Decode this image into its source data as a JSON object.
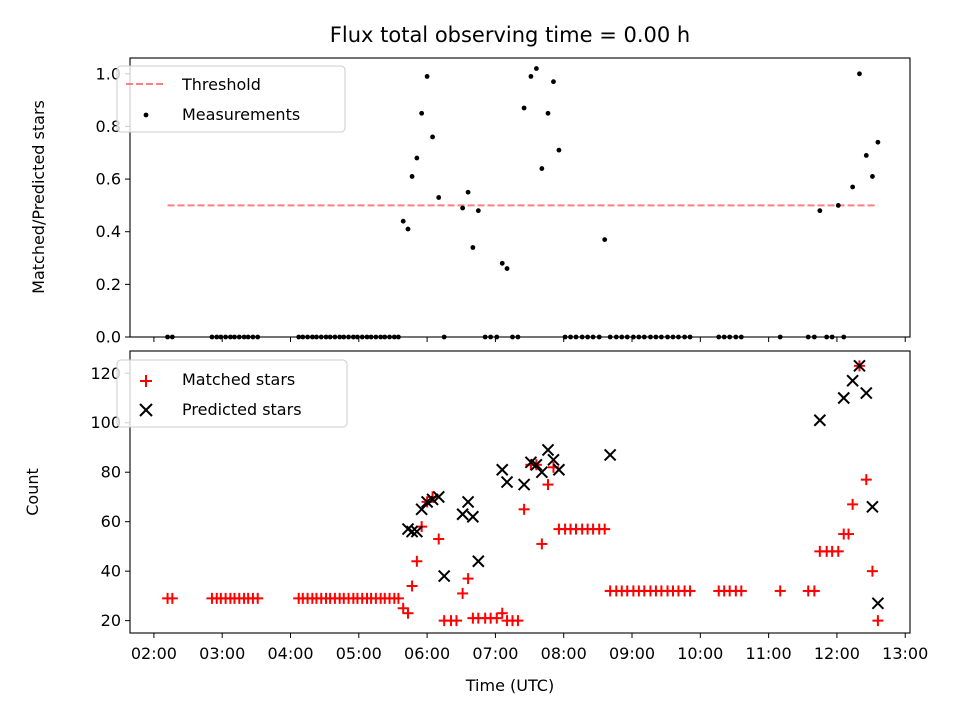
{
  "chart_data": [
    {
      "type": "scatter",
      "title": "Flux total observing time = 0.00 h",
      "xlabel": "",
      "ylabel": "Matched/Predicted stars",
      "xlim": [
        1.65,
        13.07
      ],
      "ylim": [
        0.0,
        1.06
      ],
      "yticks": [
        0.0,
        0.2,
        0.4,
        0.6,
        0.8,
        1.0
      ],
      "ytick_labels": [
        "0.0",
        "0.2",
        "0.4",
        "0.6",
        "0.8",
        "1.0"
      ],
      "legend_position": "upper-left",
      "series": [
        {
          "name": "Threshold",
          "kind": "dashed-line",
          "color": "#ff7f7f",
          "x": [
            2.2,
            12.6
          ],
          "y": [
            0.5,
            0.5
          ]
        },
        {
          "name": "Measurements",
          "kind": "dots",
          "color": "#000000",
          "x": [
            2.2,
            2.27,
            2.85,
            2.92,
            2.98,
            3.05,
            3.12,
            3.18,
            3.25,
            3.32,
            3.38,
            3.45,
            3.52,
            4.12,
            4.18,
            4.25,
            4.32,
            4.38,
            4.45,
            4.52,
            4.58,
            4.65,
            4.72,
            4.78,
            4.85,
            4.92,
            4.98,
            5.05,
            5.12,
            5.18,
            5.25,
            5.32,
            5.38,
            5.45,
            5.52,
            5.58,
            5.65,
            5.72,
            5.78,
            5.85,
            5.92,
            6.0,
            6.08,
            6.17,
            6.25,
            6.52,
            6.6,
            6.67,
            6.75,
            6.85,
            6.93,
            7.02,
            7.1,
            7.17,
            7.25,
            7.33,
            7.42,
            7.52,
            7.6,
            7.68,
            7.77,
            7.85,
            7.93,
            8.02,
            8.1,
            8.18,
            8.27,
            8.35,
            8.43,
            8.52,
            8.6,
            8.68,
            8.77,
            8.85,
            8.93,
            9.02,
            9.1,
            9.18,
            9.27,
            9.35,
            9.43,
            9.52,
            9.6,
            9.68,
            9.77,
            9.85,
            10.27,
            10.35,
            10.43,
            10.52,
            10.6,
            11.17,
            11.58,
            11.67,
            11.75,
            11.85,
            11.93,
            12.02,
            12.1,
            12.23,
            12.33,
            12.43,
            12.52,
            12.6
          ],
          "y": [
            0,
            0,
            0,
            0,
            0,
            0,
            0,
            0,
            0,
            0,
            0,
            0,
            0,
            0,
            0,
            0,
            0,
            0,
            0,
            0,
            0,
            0,
            0,
            0,
            0,
            0,
            0,
            0,
            0,
            0,
            0,
            0,
            0,
            0,
            0,
            0,
            0.44,
            0.41,
            0.61,
            0.68,
            0.85,
            0.99,
            0.76,
            0.53,
            0,
            0.49,
            0.55,
            0.34,
            0.48,
            0,
            0,
            0,
            0.28,
            0.26,
            0,
            0,
            0.87,
            0.99,
            1.02,
            0.64,
            0.85,
            0.97,
            0.71,
            0,
            0,
            0,
            0,
            0,
            0,
            0,
            0.37,
            0,
            0,
            0,
            0,
            0,
            0,
            0,
            0,
            0,
            0,
            0,
            0,
            0,
            0,
            0,
            0,
            0,
            0,
            0,
            0,
            0,
            0,
            0,
            0.48,
            0,
            0,
            0.5,
            0,
            0.57,
            1.0,
            0.69,
            0.61,
            0.74
          ]
        }
      ]
    },
    {
      "type": "scatter",
      "title": "",
      "xlabel": "Time (UTC)",
      "ylabel": "Count",
      "xlim": [
        1.65,
        13.07
      ],
      "ylim": [
        15,
        129
      ],
      "yticks": [
        20,
        40,
        60,
        80,
        100,
        120
      ],
      "ytick_labels": [
        "20",
        "40",
        "60",
        "80",
        "100",
        "120"
      ],
      "xticks": [
        2,
        3,
        4,
        5,
        6,
        7,
        8,
        9,
        10,
        11,
        12,
        13
      ],
      "xtick_labels": [
        "02:00",
        "03:00",
        "04:00",
        "05:00",
        "06:00",
        "07:00",
        "08:00",
        "09:00",
        "10:00",
        "11:00",
        "12:00",
        "13:00"
      ],
      "legend_position": "upper-left",
      "series": [
        {
          "name": "Matched stars",
          "kind": "plus",
          "color": "#ff0000",
          "x": [
            2.2,
            2.27,
            2.85,
            2.92,
            2.98,
            3.05,
            3.12,
            3.18,
            3.25,
            3.32,
            3.38,
            3.45,
            3.52,
            4.12,
            4.18,
            4.25,
            4.32,
            4.38,
            4.45,
            4.52,
            4.58,
            4.65,
            4.72,
            4.78,
            4.85,
            4.92,
            4.98,
            5.05,
            5.12,
            5.18,
            5.25,
            5.32,
            5.38,
            5.45,
            5.52,
            5.58,
            5.65,
            5.72,
            5.78,
            5.85,
            5.92,
            6.0,
            6.08,
            6.17,
            6.25,
            6.35,
            6.43,
            6.52,
            6.6,
            6.67,
            6.75,
            6.85,
            6.93,
            7.02,
            7.1,
            7.17,
            7.25,
            7.33,
            7.42,
            7.52,
            7.6,
            7.68,
            7.77,
            7.85,
            7.93,
            8.02,
            8.1,
            8.18,
            8.27,
            8.35,
            8.43,
            8.52,
            8.6,
            8.68,
            8.77,
            8.85,
            8.93,
            9.02,
            9.1,
            9.18,
            9.27,
            9.35,
            9.43,
            9.52,
            9.6,
            9.68,
            9.77,
            9.85,
            10.27,
            10.35,
            10.43,
            10.52,
            10.6,
            11.17,
            11.58,
            11.67,
            11.75,
            11.85,
            11.93,
            12.02,
            12.1,
            12.17,
            12.23,
            12.33,
            12.43,
            12.52,
            12.6
          ],
          "y": [
            29,
            29,
            29,
            29,
            29,
            29,
            29,
            29,
            29,
            29,
            29,
            29,
            29,
            29,
            29,
            29,
            29,
            29,
            29,
            29,
            29,
            29,
            29,
            29,
            29,
            29,
            29,
            29,
            29,
            29,
            29,
            29,
            29,
            29,
            29,
            29,
            25,
            23,
            34,
            44,
            58,
            68,
            70,
            53,
            20,
            20,
            20,
            31,
            37,
            21,
            21,
            21,
            21,
            21,
            23,
            20,
            20,
            20,
            65,
            83,
            83,
            51,
            75,
            82,
            57,
            57,
            57,
            57,
            57,
            57,
            57,
            57,
            57,
            32,
            32,
            32,
            32,
            32,
            32,
            32,
            32,
            32,
            32,
            32,
            32,
            32,
            32,
            32,
            32,
            32,
            32,
            32,
            32,
            32,
            32,
            32,
            48,
            48,
            48,
            48,
            55,
            55,
            67,
            123,
            77,
            40,
            20
          ]
        },
        {
          "name": "Predicted stars",
          "kind": "x",
          "color": "#000000",
          "x": [
            5.72,
            5.78,
            5.85,
            5.92,
            6.0,
            6.08,
            6.17,
            6.25,
            6.52,
            6.6,
            6.67,
            6.75,
            7.1,
            7.17,
            7.42,
            7.52,
            7.6,
            7.68,
            7.77,
            7.85,
            7.93,
            8.68,
            11.75,
            12.1,
            12.23,
            12.33,
            12.43,
            12.52,
            12.6
          ],
          "y": [
            57,
            56,
            56,
            65,
            68,
            69,
            70,
            38,
            63,
            68,
            62,
            44,
            81,
            76,
            75,
            84,
            83,
            80,
            89,
            85,
            81,
            87,
            101,
            110,
            117,
            123,
            112,
            66,
            27
          ]
        }
      ]
    }
  ]
}
